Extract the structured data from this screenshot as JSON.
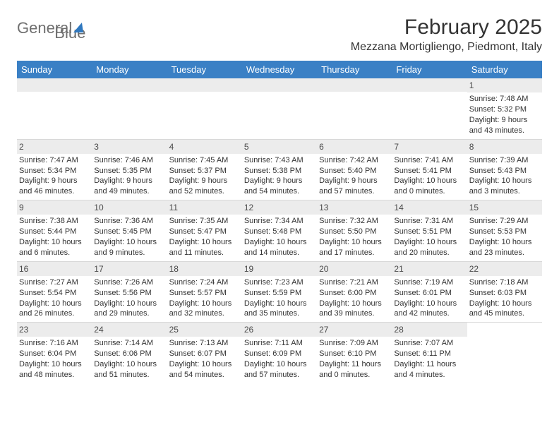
{
  "logo": {
    "gray_text": "General",
    "blue_text": "Blue"
  },
  "title": "February 2025",
  "location": "Mezzana Mortigliengo, Piedmont, Italy",
  "colors": {
    "header_bg": "#3a80c5",
    "header_text": "#ffffff",
    "day_num_bg": "#ececec",
    "text": "#333333",
    "logo_gray": "#6f6f6f",
    "logo_blue": "#2f78bf",
    "divider": "#d8d8d8"
  },
  "typography": {
    "title_fontsize": 30,
    "location_fontsize": 16,
    "day_header_fontsize": 13,
    "cell_fontsize": 11
  },
  "layout": {
    "columns": 7,
    "rows": 5
  },
  "day_headers": [
    "Sunday",
    "Monday",
    "Tuesday",
    "Wednesday",
    "Thursday",
    "Friday",
    "Saturday"
  ],
  "weeks": [
    [
      {
        "blank": true
      },
      {
        "blank": true
      },
      {
        "blank": true
      },
      {
        "blank": true
      },
      {
        "blank": true
      },
      {
        "blank": true
      },
      {
        "day": "1",
        "sunrise": "Sunrise: 7:48 AM",
        "sunset": "Sunset: 5:32 PM",
        "daylight": "Daylight: 9 hours and 43 minutes."
      }
    ],
    [
      {
        "day": "2",
        "sunrise": "Sunrise: 7:47 AM",
        "sunset": "Sunset: 5:34 PM",
        "daylight": "Daylight: 9 hours and 46 minutes."
      },
      {
        "day": "3",
        "sunrise": "Sunrise: 7:46 AM",
        "sunset": "Sunset: 5:35 PM",
        "daylight": "Daylight: 9 hours and 49 minutes."
      },
      {
        "day": "4",
        "sunrise": "Sunrise: 7:45 AM",
        "sunset": "Sunset: 5:37 PM",
        "daylight": "Daylight: 9 hours and 52 minutes."
      },
      {
        "day": "5",
        "sunrise": "Sunrise: 7:43 AM",
        "sunset": "Sunset: 5:38 PM",
        "daylight": "Daylight: 9 hours and 54 minutes."
      },
      {
        "day": "6",
        "sunrise": "Sunrise: 7:42 AM",
        "sunset": "Sunset: 5:40 PM",
        "daylight": "Daylight: 9 hours and 57 minutes."
      },
      {
        "day": "7",
        "sunrise": "Sunrise: 7:41 AM",
        "sunset": "Sunset: 5:41 PM",
        "daylight": "Daylight: 10 hours and 0 minutes."
      },
      {
        "day": "8",
        "sunrise": "Sunrise: 7:39 AM",
        "sunset": "Sunset: 5:43 PM",
        "daylight": "Daylight: 10 hours and 3 minutes."
      }
    ],
    [
      {
        "day": "9",
        "sunrise": "Sunrise: 7:38 AM",
        "sunset": "Sunset: 5:44 PM",
        "daylight": "Daylight: 10 hours and 6 minutes."
      },
      {
        "day": "10",
        "sunrise": "Sunrise: 7:36 AM",
        "sunset": "Sunset: 5:45 PM",
        "daylight": "Daylight: 10 hours and 9 minutes."
      },
      {
        "day": "11",
        "sunrise": "Sunrise: 7:35 AM",
        "sunset": "Sunset: 5:47 PM",
        "daylight": "Daylight: 10 hours and 11 minutes."
      },
      {
        "day": "12",
        "sunrise": "Sunrise: 7:34 AM",
        "sunset": "Sunset: 5:48 PM",
        "daylight": "Daylight: 10 hours and 14 minutes."
      },
      {
        "day": "13",
        "sunrise": "Sunrise: 7:32 AM",
        "sunset": "Sunset: 5:50 PM",
        "daylight": "Daylight: 10 hours and 17 minutes."
      },
      {
        "day": "14",
        "sunrise": "Sunrise: 7:31 AM",
        "sunset": "Sunset: 5:51 PM",
        "daylight": "Daylight: 10 hours and 20 minutes."
      },
      {
        "day": "15",
        "sunrise": "Sunrise: 7:29 AM",
        "sunset": "Sunset: 5:53 PM",
        "daylight": "Daylight: 10 hours and 23 minutes."
      }
    ],
    [
      {
        "day": "16",
        "sunrise": "Sunrise: 7:27 AM",
        "sunset": "Sunset: 5:54 PM",
        "daylight": "Daylight: 10 hours and 26 minutes."
      },
      {
        "day": "17",
        "sunrise": "Sunrise: 7:26 AM",
        "sunset": "Sunset: 5:56 PM",
        "daylight": "Daylight: 10 hours and 29 minutes."
      },
      {
        "day": "18",
        "sunrise": "Sunrise: 7:24 AM",
        "sunset": "Sunset: 5:57 PM",
        "daylight": "Daylight: 10 hours and 32 minutes."
      },
      {
        "day": "19",
        "sunrise": "Sunrise: 7:23 AM",
        "sunset": "Sunset: 5:59 PM",
        "daylight": "Daylight: 10 hours and 35 minutes."
      },
      {
        "day": "20",
        "sunrise": "Sunrise: 7:21 AM",
        "sunset": "Sunset: 6:00 PM",
        "daylight": "Daylight: 10 hours and 39 minutes."
      },
      {
        "day": "21",
        "sunrise": "Sunrise: 7:19 AM",
        "sunset": "Sunset: 6:01 PM",
        "daylight": "Daylight: 10 hours and 42 minutes."
      },
      {
        "day": "22",
        "sunrise": "Sunrise: 7:18 AM",
        "sunset": "Sunset: 6:03 PM",
        "daylight": "Daylight: 10 hours and 45 minutes."
      }
    ],
    [
      {
        "day": "23",
        "sunrise": "Sunrise: 7:16 AM",
        "sunset": "Sunset: 6:04 PM",
        "daylight": "Daylight: 10 hours and 48 minutes."
      },
      {
        "day": "24",
        "sunrise": "Sunrise: 7:14 AM",
        "sunset": "Sunset: 6:06 PM",
        "daylight": "Daylight: 10 hours and 51 minutes."
      },
      {
        "day": "25",
        "sunrise": "Sunrise: 7:13 AM",
        "sunset": "Sunset: 6:07 PM",
        "daylight": "Daylight: 10 hours and 54 minutes."
      },
      {
        "day": "26",
        "sunrise": "Sunrise: 7:11 AM",
        "sunset": "Sunset: 6:09 PM",
        "daylight": "Daylight: 10 hours and 57 minutes."
      },
      {
        "day": "27",
        "sunrise": "Sunrise: 7:09 AM",
        "sunset": "Sunset: 6:10 PM",
        "daylight": "Daylight: 11 hours and 0 minutes."
      },
      {
        "day": "28",
        "sunrise": "Sunrise: 7:07 AM",
        "sunset": "Sunset: 6:11 PM",
        "daylight": "Daylight: 11 hours and 4 minutes."
      },
      {
        "blank": true,
        "no_bg": true
      }
    ]
  ]
}
